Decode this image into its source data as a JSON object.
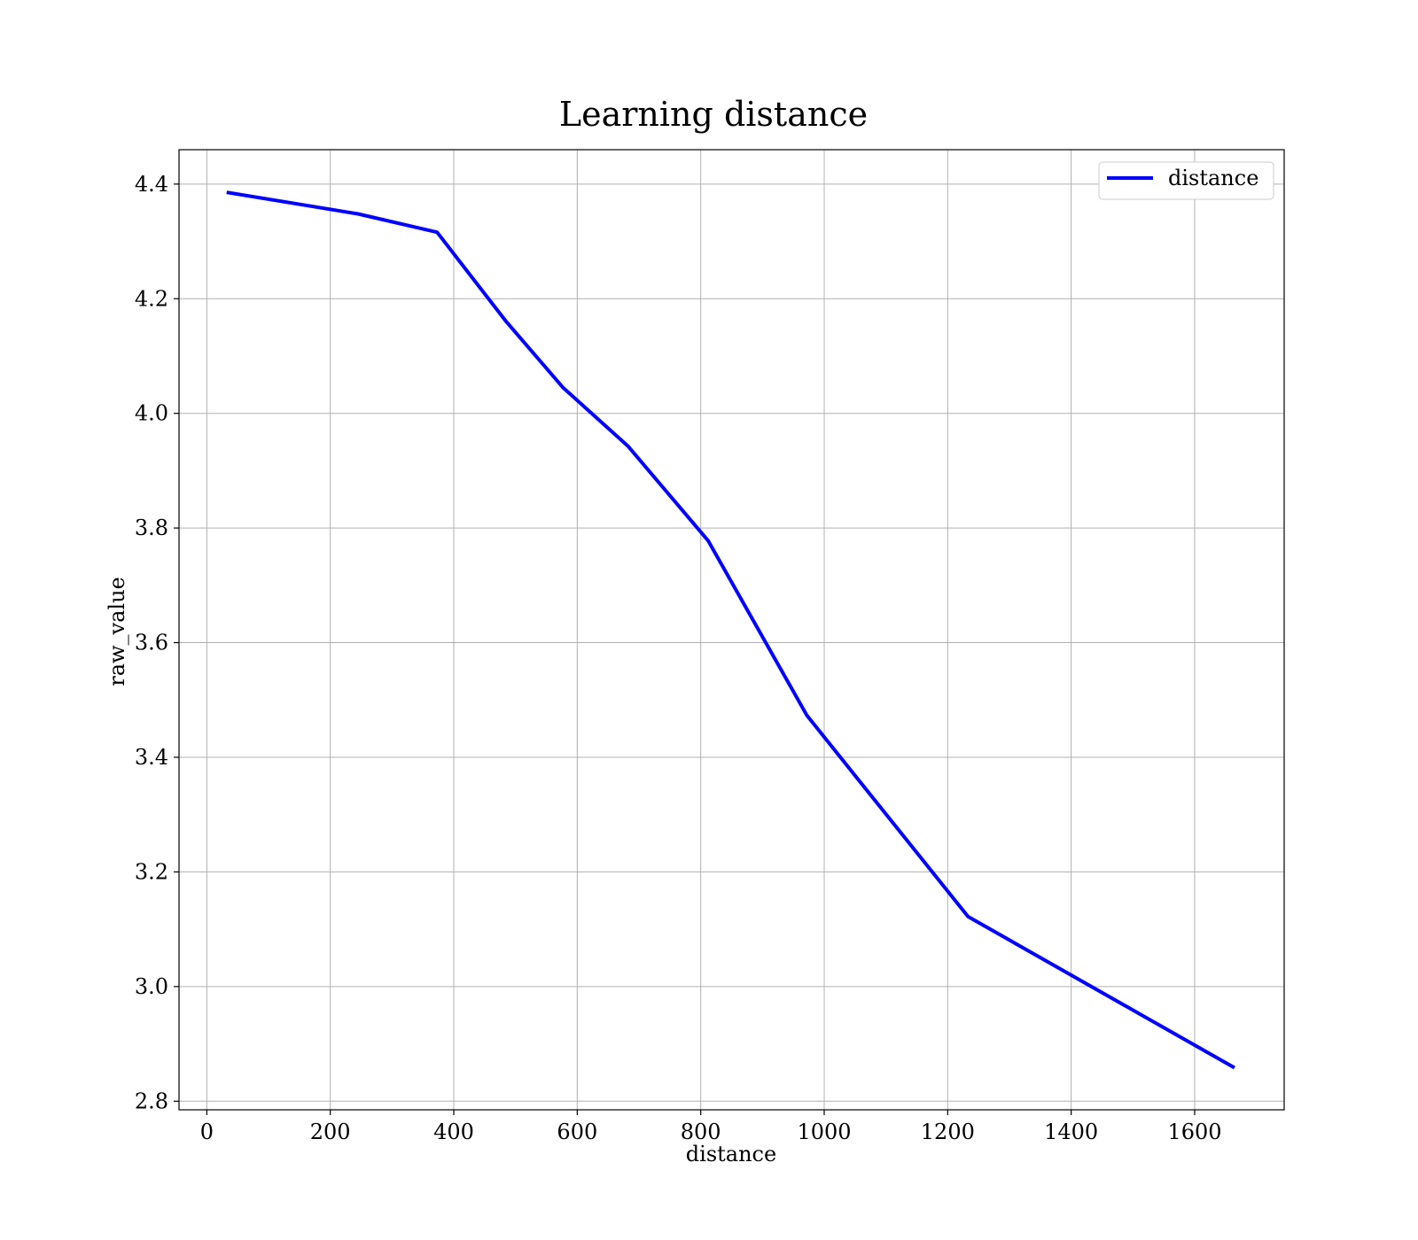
{
  "chart_data": {
    "type": "line",
    "title": "Learning distance",
    "xlabel": "distance",
    "ylabel": "raw_value",
    "xlim": [
      -45,
      1745
    ],
    "ylim": [
      2.785,
      4.46
    ],
    "xticks": [
      0,
      200,
      400,
      600,
      800,
      1000,
      1200,
      1400,
      1600
    ],
    "yticks": [
      2.8,
      3.0,
      3.2,
      3.4,
      3.6,
      3.8,
      4.0,
      4.2,
      4.4
    ],
    "xtick_labels": [
      "0",
      "200",
      "400",
      "600",
      "800",
      "1000",
      "1200",
      "1400",
      "1600"
    ],
    "ytick_labels": [
      "2.8",
      "3.0",
      "3.2",
      "3.4",
      "3.6",
      "3.8",
      "4.0",
      "4.2",
      "4.4"
    ],
    "grid": true,
    "legend_position": "top-right",
    "series": [
      {
        "name": "distance",
        "color": "#0000ff",
        "x": [
          35,
          245,
          373,
          485,
          577,
          682,
          812,
          972,
          1233,
          1662
        ],
        "y": [
          4.385,
          4.348,
          4.316,
          4.16,
          4.045,
          3.943,
          3.778,
          3.473,
          3.122,
          2.86
        ]
      }
    ]
  }
}
